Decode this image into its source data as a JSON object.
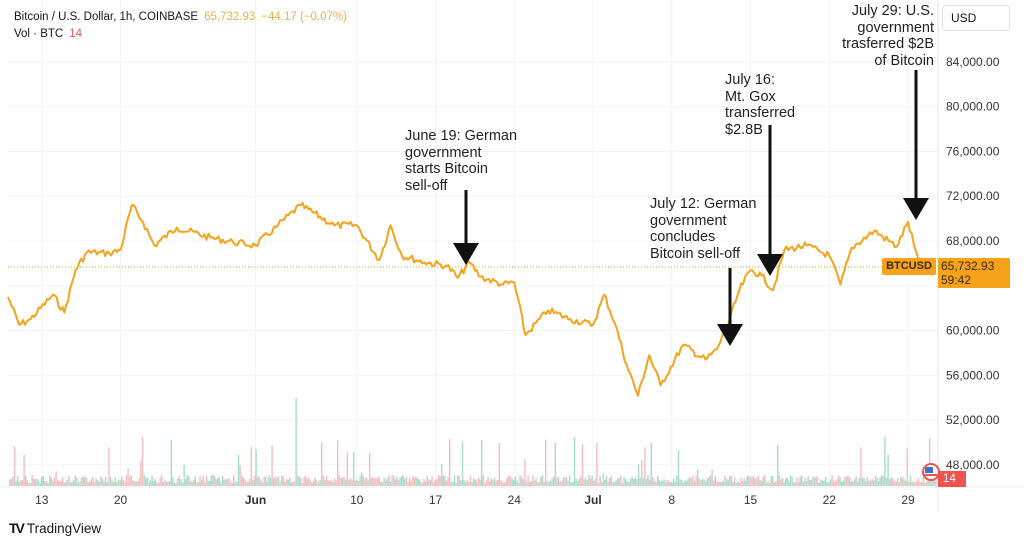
{
  "header": {
    "symbol_title": "Bitcoin / U.S. Dollar, 1h, COINBASE",
    "last_price": "65,732.93",
    "change": "−44.17 (−0.07%)",
    "volume_label": "Vol · BTC",
    "volume_value": "14"
  },
  "axis_controls": {
    "currency": "USD"
  },
  "price_tag": {
    "symbol": "BTCUSD",
    "price": "65,732.93",
    "countdown": "59:42"
  },
  "volume_badge": "14",
  "branding": {
    "name": "TradingView"
  },
  "colors": {
    "price_line": "#f7a21b",
    "volume_up": "#7fcdbb",
    "volume_down": "#f4a3a3",
    "annotation": "#111111"
  },
  "annotations": [
    {
      "date": "2024-06-19",
      "lines": [
        "June 19: German",
        "government",
        "starts Bitcoin",
        "sell-off"
      ]
    },
    {
      "date": "2024-07-12",
      "lines": [
        "July 12: German",
        "government",
        "concludes",
        "Bitcoin sell-off"
      ]
    },
    {
      "date": "2024-07-16",
      "lines": [
        "July 16:",
        "Mt. Gox",
        "transferred",
        "$2.8B"
      ]
    },
    {
      "date": "2024-07-29",
      "lines": [
        "July 29: U.S.",
        "government",
        "trasferred $2B",
        "of Bitcoin"
      ]
    }
  ],
  "chart_data": {
    "type": "line",
    "title": "Bitcoin / U.S. Dollar, 1h, COINBASE",
    "xlabel": "",
    "ylabel": "",
    "ylim": [
      46000,
      88000
    ],
    "y_ticks": [
      "48,000.00",
      "52,000.00",
      "56,000.00",
      "60,000.00",
      "64,000.00",
      "68,000.00",
      "72,000.00",
      "76,000.00",
      "80,000.00",
      "84,000.00"
    ],
    "y_tick_values": [
      48000,
      52000,
      56000,
      60000,
      64000,
      68000,
      72000,
      76000,
      80000,
      84000
    ],
    "x_ticks": [
      {
        "label": "13",
        "date": "2024-05-13"
      },
      {
        "label": "20",
        "date": "2024-05-20"
      },
      {
        "label": "Jun",
        "date": "2024-06-01",
        "bold": true
      },
      {
        "label": "10",
        "date": "2024-06-10"
      },
      {
        "label": "17",
        "date": "2024-06-17"
      },
      {
        "label": "24",
        "date": "2024-06-24"
      },
      {
        "label": "Jul",
        "date": "2024-07-01",
        "bold": true
      },
      {
        "label": "8",
        "date": "2024-07-08"
      },
      {
        "label": "15",
        "date": "2024-07-15"
      },
      {
        "label": "22",
        "date": "2024-07-22"
      },
      {
        "label": "29",
        "date": "2024-07-29"
      }
    ],
    "xlim": [
      "2024-05-10",
      "2024-07-30"
    ],
    "grid": true,
    "last_value": 65732.93,
    "series": [
      {
        "x": [
          "2024-05-10",
          "2024-05-11",
          "2024-05-12",
          "2024-05-14",
          "2024-05-15",
          "2024-05-16",
          "2024-05-17",
          "2024-05-19",
          "2024-05-20",
          "2024-05-21",
          "2024-05-22",
          "2024-05-23",
          "2024-05-25",
          "2024-05-28",
          "2024-05-30",
          "2024-06-01",
          "2024-06-03",
          "2024-06-05",
          "2024-06-08",
          "2024-06-10",
          "2024-06-12",
          "2024-06-13",
          "2024-06-14",
          "2024-06-16",
          "2024-06-18",
          "2024-06-19",
          "2024-06-20",
          "2024-06-21",
          "2024-06-23",
          "2024-06-24",
          "2024-06-25",
          "2024-06-27",
          "2024-06-29",
          "2024-07-01",
          "2024-07-02",
          "2024-07-03",
          "2024-07-04",
          "2024-07-05",
          "2024-07-06",
          "2024-07-07",
          "2024-07-09",
          "2024-07-11",
          "2024-07-12",
          "2024-07-13",
          "2024-07-14",
          "2024-07-15",
          "2024-07-16",
          "2024-07-17",
          "2024-07-18",
          "2024-07-20",
          "2024-07-22",
          "2024-07-23",
          "2024-07-24",
          "2024-07-26",
          "2024-07-28",
          "2024-07-29",
          "2024-07-30"
        ],
        "y": [
          63000,
          60500,
          61000,
          63200,
          61600,
          65400,
          67000,
          66900,
          67200,
          71200,
          69700,
          67600,
          69200,
          68300,
          67900,
          67600,
          69400,
          71200,
          69400,
          69400,
          66300,
          69400,
          66700,
          66100,
          65800,
          64700,
          66100,
          64800,
          64100,
          64300,
          59600,
          61800,
          61000,
          60500,
          63200,
          60500,
          56900,
          54200,
          57800,
          55100,
          58700,
          57400,
          58300,
          60500,
          63600,
          65400,
          64900,
          63600,
          67200,
          67600,
          66700,
          64100,
          67400,
          68900,
          67500,
          69700,
          65733
        ]
      }
    ]
  }
}
